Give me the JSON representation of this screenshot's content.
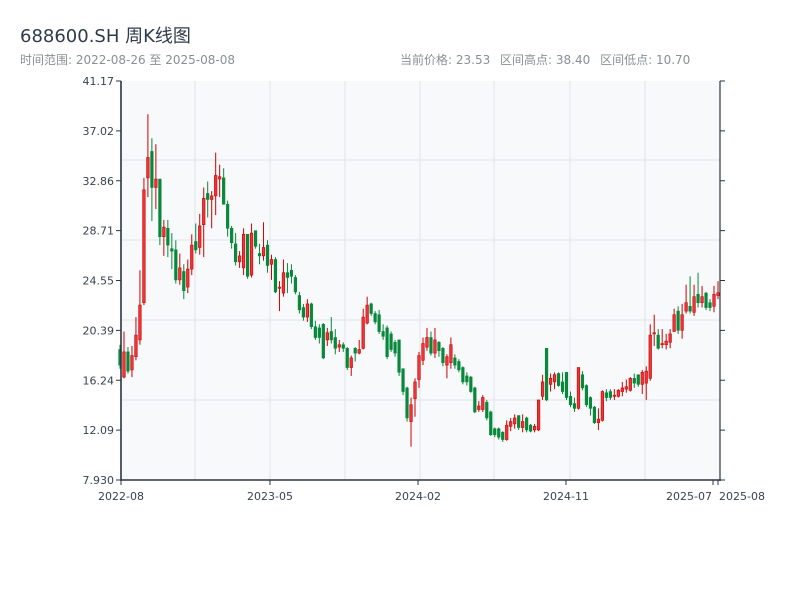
{
  "header": {
    "title": "688600.SH 周K线图",
    "range_label": "时间范围: 2022-08-26 至 2025-08-08",
    "current_price": "当前价格: 23.53",
    "range_high": "区间高点: 38.40",
    "range_low": "区间低点: 10.70"
  },
  "colors": {
    "up": "#d00000",
    "up_fill": "#e8363a",
    "down": "#07883a",
    "plot_bg": "#f7f9fb",
    "grid": "#e2e5ea",
    "axis": "#2b3544"
  },
  "chart_data": {
    "type": "candlestick",
    "title": "688600.SH 周K线图",
    "ylim": [
      7.93,
      41.17
    ],
    "y_ticks": [
      "7.930",
      "12.09",
      "16.24",
      "20.39",
      "24.55",
      "28.71",
      "32.86",
      "37.02",
      "41.17"
    ],
    "x_ticks": [
      "2022-08",
      "2023-05",
      "2024-02",
      "2024-11",
      "2025-07",
      "2025-08"
    ],
    "grid": true,
    "up_color_meaning": "red = close above open",
    "fields": [
      "date",
      "open",
      "close",
      "low",
      "high"
    ],
    "candles": [
      [
        "2022-08-26",
        18.8,
        17.5,
        17.2,
        19.2
      ],
      [
        "2022-09-02",
        16.5,
        18.6,
        16.4,
        20.3
      ],
      [
        "2022-09-09",
        18.6,
        17.0,
        16.8,
        19.0
      ],
      [
        "2022-09-16",
        17.1,
        18.3,
        16.5,
        19.1
      ],
      [
        "2022-09-23",
        18.2,
        20.0,
        17.9,
        21.5
      ],
      [
        "2022-09-30",
        19.6,
        22.5,
        19.2,
        25.4
      ],
      [
        "2022-10-07",
        22.7,
        32.1,
        22.5,
        33.1
      ],
      [
        "2022-10-14",
        33.1,
        34.8,
        31.5,
        38.4
      ],
      [
        "2022-10-21",
        35.3,
        32.3,
        29.5,
        36.4
      ],
      [
        "2022-10-28",
        32.3,
        33.0,
        30.5,
        35.9
      ],
      [
        "2022-11-04",
        33.0,
        28.2,
        27.5,
        33.0
      ],
      [
        "2022-11-11",
        28.2,
        29.0,
        26.6,
        29.6
      ],
      [
        "2022-11-18",
        28.9,
        27.5,
        26.5,
        29.6
      ],
      [
        "2022-11-25",
        27.2,
        27.0,
        25.5,
        28.5
      ],
      [
        "2022-12-02",
        27.1,
        24.6,
        24.3,
        27.9
      ],
      [
        "2022-12-09",
        24.6,
        25.6,
        24.2,
        26.8
      ],
      [
        "2022-12-16",
        25.3,
        23.7,
        23.0,
        25.9
      ],
      [
        "2022-12-23",
        24.0,
        25.5,
        23.5,
        26.3
      ],
      [
        "2022-12-30",
        25.5,
        27.5,
        25.0,
        28.4
      ],
      [
        "2023-01-06",
        27.8,
        27.1,
        26.8,
        29.3
      ],
      [
        "2023-01-13",
        27.3,
        29.1,
        26.7,
        30.1
      ],
      [
        "2023-01-20",
        29.2,
        31.4,
        26.5,
        32.3
      ],
      [
        "2023-02-03",
        31.8,
        31.3,
        29.8,
        32.8
      ],
      [
        "2023-02-10",
        31.3,
        31.6,
        28.9,
        32.0
      ],
      [
        "2023-02-17",
        31.6,
        33.3,
        30.0,
        35.2
      ],
      [
        "2023-02-24",
        33.0,
        33.2,
        31.5,
        34.2
      ],
      [
        "2023-03-03",
        33.1,
        30.9,
        30.9,
        33.9
      ],
      [
        "2023-03-10",
        30.9,
        28.9,
        28.2,
        31.2
      ],
      [
        "2023-03-17",
        28.9,
        27.7,
        27.2,
        29.1
      ],
      [
        "2023-03-24",
        27.6,
        26.1,
        25.8,
        28.5
      ],
      [
        "2023-03-31",
        26.1,
        26.6,
        25.6,
        27.0
      ],
      [
        "2023-04-07",
        25.6,
        28.4,
        25.0,
        28.9
      ],
      [
        "2023-04-14",
        28.4,
        24.9,
        24.7,
        28.4
      ],
      [
        "2023-04-21",
        25.0,
        28.5,
        24.8,
        29.3
      ],
      [
        "2023-04-28",
        28.7,
        27.4,
        27.2,
        28.7
      ],
      [
        "2023-05-05",
        26.8,
        26.6,
        25.9,
        27.6
      ],
      [
        "2023-05-12",
        26.6,
        27.3,
        26.2,
        29.4
      ],
      [
        "2023-05-19",
        27.5,
        25.8,
        25.2,
        27.9
      ],
      [
        "2023-05-26",
        25.9,
        26.3,
        24.6,
        26.7
      ],
      [
        "2023-06-02",
        26.3,
        23.6,
        23.5,
        26.5
      ],
      [
        "2023-06-09",
        23.9,
        24.0,
        22.0,
        24.5
      ],
      [
        "2023-06-16",
        23.5,
        25.2,
        23.2,
        26.3
      ],
      [
        "2023-06-23",
        25.2,
        24.8,
        23.5,
        26.0
      ],
      [
        "2023-06-30",
        25.4,
        24.9,
        24.3,
        25.9
      ],
      [
        "2023-07-07",
        24.8,
        23.6,
        23.4,
        25.0
      ],
      [
        "2023-07-14",
        23.3,
        22.1,
        21.8,
        23.6
      ],
      [
        "2023-07-21",
        22.3,
        21.5,
        21.2,
        22.6
      ],
      [
        "2023-07-28",
        21.5,
        22.6,
        21.1,
        23.0
      ],
      [
        "2023-08-04",
        22.6,
        20.7,
        20.5,
        22.7
      ],
      [
        "2023-08-11",
        20.7,
        19.8,
        19.6,
        21.2
      ],
      [
        "2023-08-18",
        20.6,
        19.8,
        19.3,
        20.9
      ],
      [
        "2023-08-25",
        20.9,
        18.1,
        18.0,
        21.0
      ],
      [
        "2023-09-01",
        19.6,
        20.2,
        19.1,
        20.6
      ],
      [
        "2023-09-08",
        20.3,
        19.6,
        19.3,
        21.5
      ],
      [
        "2023-09-15",
        19.8,
        18.9,
        18.4,
        20.5
      ],
      [
        "2023-09-22",
        19.0,
        19.2,
        18.6,
        19.6
      ],
      [
        "2023-09-29",
        19.2,
        18.9,
        18.6,
        19.4
      ],
      [
        "2023-10-13",
        18.9,
        17.3,
        17.1,
        19.0
      ],
      [
        "2023-10-20",
        17.3,
        18.1,
        16.6,
        18.3
      ],
      [
        "2023-10-27",
        18.9,
        18.5,
        17.8,
        19.0
      ],
      [
        "2023-11-03",
        18.5,
        18.8,
        18.4,
        19.6
      ],
      [
        "2023-11-10",
        18.9,
        21.5,
        18.8,
        22.2
      ],
      [
        "2023-11-17",
        21.0,
        22.5,
        20.9,
        23.2
      ],
      [
        "2023-11-24",
        22.6,
        21.8,
        21.6,
        22.7
      ],
      [
        "2023-12-01",
        21.8,
        21.1,
        20.9,
        22.0
      ],
      [
        "2023-12-08",
        21.7,
        20.3,
        20.1,
        22.1
      ],
      [
        "2023-12-15",
        20.3,
        19.9,
        19.6,
        20.9
      ],
      [
        "2023-12-22",
        20.6,
        18.2,
        18.0,
        20.8
      ],
      [
        "2023-12-29",
        20.1,
        18.8,
        18.6,
        20.3
      ],
      [
        "2024-01-05",
        19.4,
        18.5,
        18.2,
        19.6
      ],
      [
        "2024-01-12",
        19.6,
        16.9,
        16.6,
        19.6
      ],
      [
        "2024-01-19",
        17.2,
        15.3,
        15.0,
        17.2
      ],
      [
        "2024-01-26",
        15.6,
        13.1,
        12.8,
        15.7
      ],
      [
        "2024-02-02",
        12.8,
        14.2,
        10.7,
        14.8
      ],
      [
        "2024-02-09",
        14.7,
        16.1,
        13.2,
        16.4
      ],
      [
        "2024-02-23",
        16.3,
        18.3,
        15.6,
        18.6
      ],
      [
        "2024-03-01",
        17.9,
        19.3,
        17.5,
        19.8
      ],
      [
        "2024-03-08",
        19.0,
        19.8,
        18.7,
        20.6
      ],
      [
        "2024-03-15",
        19.8,
        18.5,
        18.3,
        20.3
      ],
      [
        "2024-03-22",
        18.5,
        19.6,
        18.1,
        20.6
      ],
      [
        "2024-03-29",
        19.4,
        18.7,
        18.2,
        19.5
      ],
      [
        "2024-04-05",
        18.9,
        17.7,
        17.4,
        19.0
      ],
      [
        "2024-04-12",
        17.5,
        18.2,
        16.4,
        18.4
      ],
      [
        "2024-04-19",
        17.7,
        19.2,
        17.2,
        19.8
      ],
      [
        "2024-04-26",
        18.1,
        17.5,
        17.2,
        18.4
      ],
      [
        "2024-05-03",
        17.8,
        17.1,
        16.9,
        18.0
      ],
      [
        "2024-05-10",
        17.3,
        16.1,
        15.9,
        17.4
      ],
      [
        "2024-05-17",
        16.6,
        16.1,
        15.8,
        16.9
      ],
      [
        "2024-05-24",
        16.5,
        15.3,
        15.2,
        16.6
      ],
      [
        "2024-05-31",
        15.6,
        13.6,
        13.5,
        15.7
      ],
      [
        "2024-06-07",
        13.8,
        14.1,
        13.6,
        14.5
      ],
      [
        "2024-06-14",
        13.8,
        14.8,
        13.6,
        15.0
      ],
      [
        "2024-06-21",
        14.4,
        13.1,
        12.9,
        14.6
      ],
      [
        "2024-06-28",
        13.6,
        11.7,
        11.6,
        13.7
      ],
      [
        "2024-07-05",
        12.2,
        11.7,
        11.5,
        12.3
      ],
      [
        "2024-07-12",
        12.2,
        11.5,
        11.3,
        12.3
      ],
      [
        "2024-07-19",
        11.9,
        11.3,
        11.1,
        12.0
      ],
      [
        "2024-07-26",
        11.3,
        12.5,
        11.2,
        12.9
      ],
      [
        "2024-08-02",
        12.4,
        12.8,
        12.0,
        13.1
      ],
      [
        "2024-08-09",
        12.6,
        13.1,
        12.2,
        13.4
      ],
      [
        "2024-08-16",
        13.3,
        12.3,
        12.1,
        13.3
      ],
      [
        "2024-08-23",
        12.3,
        12.8,
        11.9,
        13.4
      ],
      [
        "2024-08-30",
        13.1,
        12.1,
        11.9,
        13.2
      ],
      [
        "2024-09-06",
        12.5,
        12.0,
        11.9,
        12.6
      ],
      [
        "2024-09-13",
        12.1,
        12.4,
        11.9,
        12.6
      ],
      [
        "2024-09-20",
        12.1,
        14.6,
        12.0,
        14.6
      ],
      [
        "2024-09-27",
        14.9,
        16.1,
        14.6,
        16.7
      ],
      [
        "2024-10-04",
        18.9,
        14.6,
        14.5,
        18.9
      ],
      [
        "2024-10-11",
        15.9,
        16.4,
        15.3,
        16.8
      ],
      [
        "2024-10-18",
        16.1,
        16.7,
        15.5,
        16.9
      ],
      [
        "2024-10-25",
        16.8,
        15.8,
        15.7,
        16.9
      ],
      [
        "2024-11-01",
        16.1,
        15.3,
        15.1,
        16.9
      ],
      [
        "2024-11-08",
        16.9,
        14.8,
        14.6,
        16.9
      ],
      [
        "2024-11-15",
        14.9,
        14.2,
        14.0,
        15.3
      ],
      [
        "2024-11-22",
        14.3,
        13.9,
        13.6,
        14.8
      ],
      [
        "2024-11-29",
        13.9,
        17.3,
        13.8,
        17.3
      ],
      [
        "2024-12-06",
        16.7,
        15.6,
        15.4,
        17.0
      ],
      [
        "2024-12-13",
        15.8,
        14.2,
        14.0,
        15.9
      ],
      [
        "2024-12-20",
        14.8,
        13.9,
        13.3,
        14.9
      ],
      [
        "2024-12-27",
        14.0,
        12.7,
        12.6,
        14.1
      ],
      [
        "2025-01-03",
        12.7,
        13.0,
        12.1,
        13.9
      ],
      [
        "2025-01-10",
        12.9,
        15.3,
        12.8,
        15.4
      ],
      [
        "2025-01-17",
        15.2,
        14.8,
        14.5,
        15.5
      ],
      [
        "2025-01-24",
        15.3,
        14.8,
        14.6,
        15.5
      ],
      [
        "2025-02-07",
        14.9,
        15.0,
        14.6,
        15.5
      ],
      [
        "2025-02-14",
        14.9,
        15.4,
        14.8,
        15.5
      ],
      [
        "2025-02-21",
        15.3,
        15.6,
        14.9,
        16.1
      ],
      [
        "2025-02-28",
        15.5,
        15.7,
        15.2,
        16.3
      ],
      [
        "2025-03-07",
        15.4,
        16.4,
        15.3,
        16.5
      ],
      [
        "2025-03-14",
        16.4,
        16.0,
        15.6,
        16.8
      ],
      [
        "2025-03-21",
        16.7,
        15.9,
        15.7,
        16.7
      ],
      [
        "2025-03-28",
        15.9,
        16.9,
        15.1,
        17.1
      ],
      [
        "2025-04-04",
        16.0,
        17.0,
        14.6,
        17.4
      ],
      [
        "2025-04-11",
        16.4,
        20.0,
        16.2,
        20.9
      ],
      [
        "2025-04-18",
        20.1,
        20.2,
        19.1,
        21.7
      ],
      [
        "2025-04-25",
        20.0,
        18.9,
        18.8,
        20.5
      ],
      [
        "2025-05-02",
        19.2,
        19.3,
        18.9,
        20.5
      ],
      [
        "2025-05-09",
        19.2,
        19.5,
        18.8,
        20.1
      ],
      [
        "2025-05-16",
        19.4,
        20.1,
        18.9,
        20.5
      ],
      [
        "2025-05-23",
        20.3,
        21.7,
        20.3,
        22.2
      ],
      [
        "2025-05-30",
        22.0,
        20.4,
        20.1,
        22.4
      ],
      [
        "2025-06-06",
        20.4,
        21.7,
        19.7,
        22.6
      ],
      [
        "2025-06-13",
        22.0,
        22.7,
        21.8,
        24.2
      ],
      [
        "2025-06-20",
        22.4,
        22.0,
        21.8,
        24.9
      ],
      [
        "2025-06-27",
        21.9,
        23.2,
        21.6,
        24.2
      ],
      [
        "2025-07-04",
        23.4,
        22.7,
        22.3,
        25.2
      ],
      [
        "2025-07-11",
        22.7,
        23.2,
        22.3,
        24.1
      ],
      [
        "2025-07-18",
        23.5,
        22.3,
        22.1,
        23.6
      ],
      [
        "2025-07-25",
        22.7,
        22.3,
        22.0,
        23.0
      ],
      [
        "2025-08-01",
        22.4,
        23.4,
        21.9,
        24.1
      ],
      [
        "2025-08-08",
        23.3,
        23.53,
        23.0,
        24.5
      ]
    ]
  }
}
